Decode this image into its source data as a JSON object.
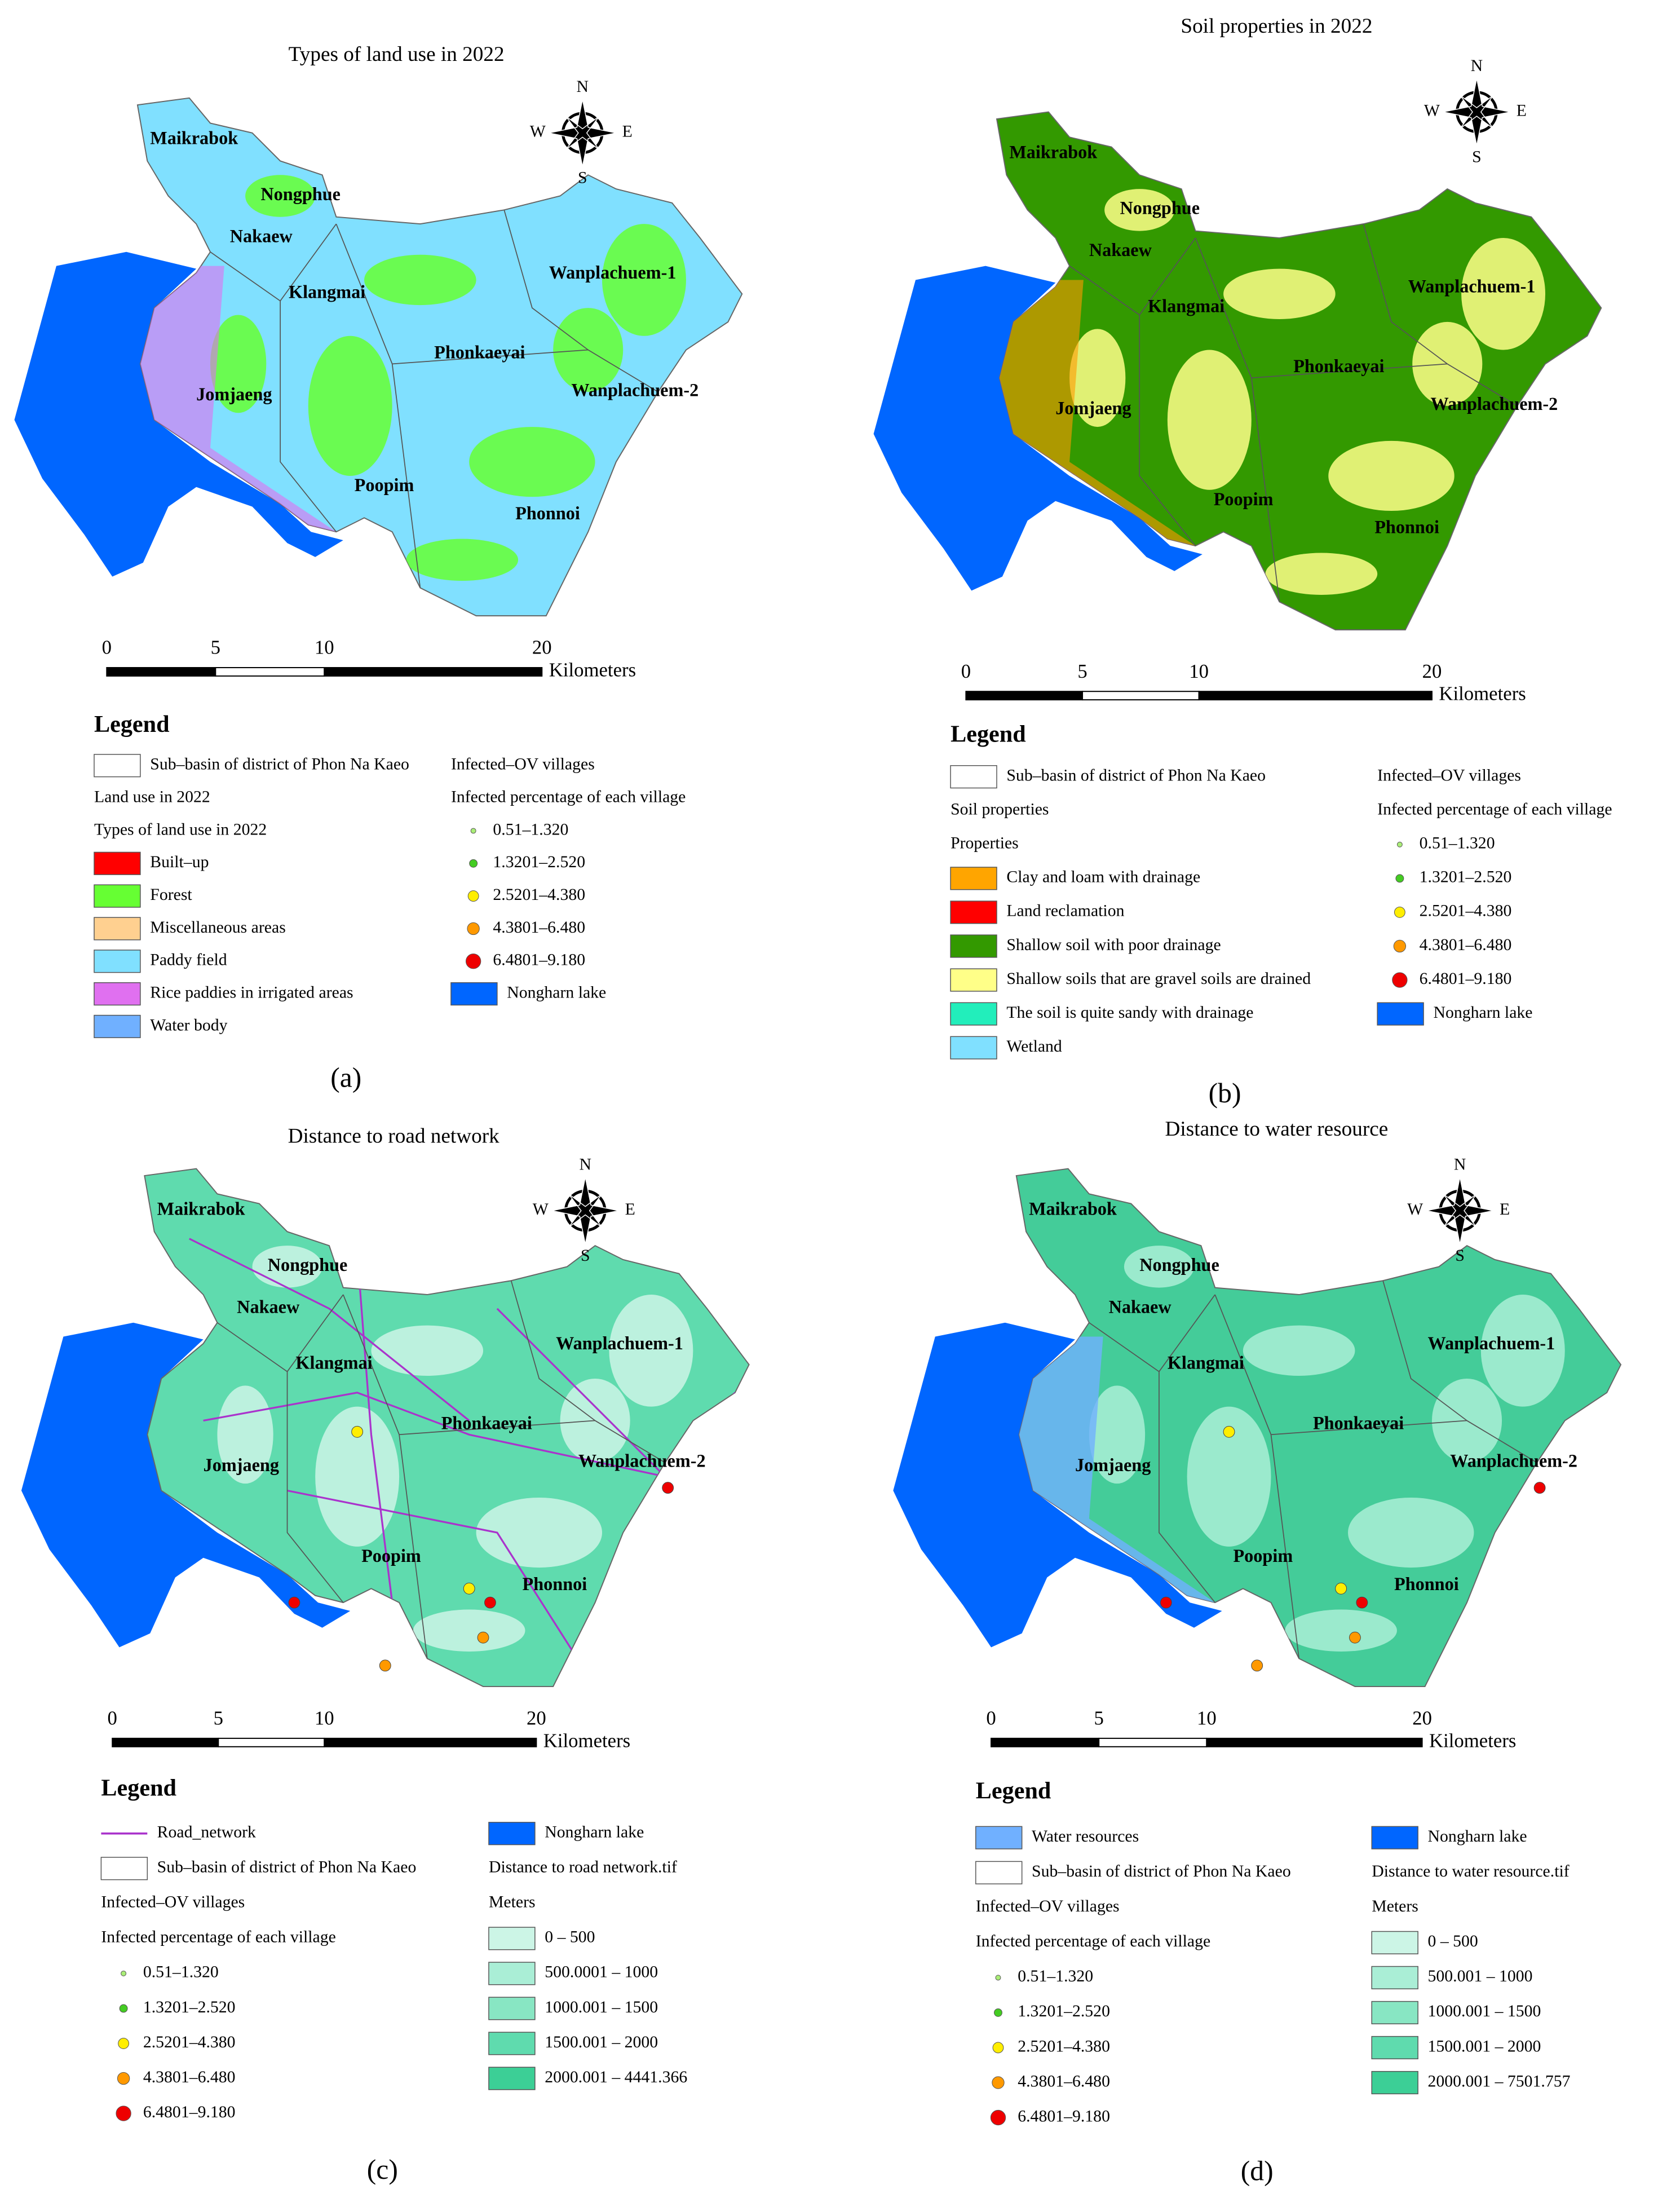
{
  "panels": [
    {
      "title": "Types of land use in 2022",
      "base": "#80e0ff",
      "blob": "#66ff33",
      "accent": "#e070f0",
      "compass": {
        "n": "N",
        "e": "E",
        "s": "S",
        "w": "W"
      },
      "places": [
        "Maikrabok",
        "Nongphue",
        "Nakaew",
        "Klangmai",
        "Wanplachuem-1",
        "Phonkaeyai",
        "Wanplachuem-2",
        "Jomjaeng",
        "Poopim",
        "Phonnoi"
      ],
      "scale": {
        "ticks": [
          "0",
          "5",
          "10",
          "20"
        ],
        "unit": "Kilometers"
      },
      "legend": {
        "heading": "Legend",
        "left": [
          {
            "label": "Sub–basin of district of Phon Na Kaeo",
            "symbol": "box",
            "color": "#ffffff"
          },
          {
            "label": "Land use in 2022"
          },
          {
            "label": "Types of land use in 2022"
          },
          {
            "label": "Built–up",
            "symbol": "box",
            "color": "#ff0000"
          },
          {
            "label": "Forest",
            "symbol": "box",
            "color": "#66ff33"
          },
          {
            "label": "Miscellaneous areas",
            "symbol": "box",
            "color": "#ffd090"
          },
          {
            "label": "Paddy field",
            "symbol": "box",
            "color": "#80e0ff"
          },
          {
            "label": "Rice paddies in irrigated areas",
            "symbol": "box",
            "color": "#e070f0"
          },
          {
            "label": "Water body",
            "symbol": "box",
            "color": "#70b0ff"
          }
        ],
        "right": [
          {
            "label": "Infected–OV villages"
          },
          {
            "label": "Infected percentage of each village"
          },
          {
            "label": "0.51–1.320",
            "symbol": "dot",
            "color": "#aaee77"
          },
          {
            "label": "1.3201–2.520",
            "symbol": "dot",
            "color": "#44cc22"
          },
          {
            "label": "2.5201–4.380",
            "symbol": "dot",
            "color": "#ffee00"
          },
          {
            "label": "4.3801–6.480",
            "symbol": "dot",
            "color": "#ff9900"
          },
          {
            "label": "6.4801–9.180",
            "symbol": "dot",
            "color": "#ee0000"
          },
          {
            "label": "Nongharn lake",
            "symbol": "box",
            "color": "#0066ff"
          }
        ]
      },
      "caption": "(a)"
    },
    {
      "title": "Soil properties in 2022",
      "base": "#339900",
      "blob": "#ffff88",
      "accent": "#ff9900",
      "compass": {
        "n": "N",
        "e": "E",
        "s": "S",
        "w": "W"
      },
      "places": [
        "Maikrabok",
        "Nongphue",
        "Nakaew",
        "Klangmai",
        "Wanplachuem-1",
        "Phonkaeyai",
        "Wanplachuem-2",
        "Jomjaeng",
        "Poopim",
        "Phonnoi"
      ],
      "scale": {
        "ticks": [
          "0",
          "5",
          "10",
          "20"
        ],
        "unit": "Kilometers"
      },
      "legend": {
        "heading": "Legend",
        "left": [
          {
            "label": "Sub–basin of district of Phon Na Kaeo",
            "symbol": "box",
            "color": "#ffffff"
          },
          {
            "label": "Soil properties"
          },
          {
            "label": "Properties"
          },
          {
            "label": "Clay and loam with drainage",
            "symbol": "box",
            "color": "#ffa500"
          },
          {
            "label": "Land reclamation",
            "symbol": "box",
            "color": "#ff0000"
          },
          {
            "label": "Shallow soil with poor drainage",
            "symbol": "box",
            "color": "#339900"
          },
          {
            "label": "Shallow soils that are gravel soils are drained",
            "symbol": "box",
            "color": "#ffff88"
          },
          {
            "label": "The soil is quite sandy with drainage",
            "symbol": "box",
            "color": "#22eebb"
          },
          {
            "label": "Wetland",
            "symbol": "box",
            "color": "#80e0ff"
          }
        ],
        "right": [
          {
            "label": "Infected–OV villages"
          },
          {
            "label": "Infected percentage of each village"
          },
          {
            "label": "0.51–1.320",
            "symbol": "dot",
            "color": "#aaee77"
          },
          {
            "label": "1.3201–2.520",
            "symbol": "dot",
            "color": "#44cc22"
          },
          {
            "label": "2.5201–4.380",
            "symbol": "dot",
            "color": "#ffee00"
          },
          {
            "label": "4.3801–6.480",
            "symbol": "dot",
            "color": "#ff9900"
          },
          {
            "label": "6.4801–9.180",
            "symbol": "dot",
            "color": "#ee0000"
          },
          {
            "label": "Nongharn lake",
            "symbol": "box",
            "color": "#0066ff"
          }
        ]
      },
      "caption": "(b)"
    },
    {
      "title": "Distance to road network",
      "base": "#5fdbae",
      "blob": "#ccf5e6",
      "accent": "#aa33cc",
      "compass": {
        "n": "N",
        "e": "E",
        "s": "S",
        "w": "W"
      },
      "places": [
        "Maikrabok",
        "Nongphue",
        "Nakaew",
        "Klangmai",
        "Wanplachuem-1",
        "Phonkaeyai",
        "Wanplachuem-2",
        "Jomjaeng",
        "Poopim",
        "Phonnoi"
      ],
      "scale": {
        "ticks": [
          "0",
          "5",
          "10",
          "20"
        ],
        "unit": "Kilometers"
      },
      "legend": {
        "heading": "Legend",
        "left": [
          {
            "label": "Road_network",
            "symbol": "line",
            "color": "#aa33cc"
          },
          {
            "label": "Sub–basin of district of Phon Na Kaeo",
            "symbol": "box",
            "color": "#ffffff"
          },
          {
            "label": "Infected–OV villages"
          },
          {
            "label": "Infected percentage of each village"
          },
          {
            "label": "0.51–1.320",
            "symbol": "dot",
            "color": "#aaee77"
          },
          {
            "label": "1.3201–2.520",
            "symbol": "dot",
            "color": "#44cc22"
          },
          {
            "label": "2.5201–4.380",
            "symbol": "dot",
            "color": "#ffee00"
          },
          {
            "label": "4.3801–6.480",
            "symbol": "dot",
            "color": "#ff9900"
          },
          {
            "label": "6.4801–9.180",
            "symbol": "dot",
            "color": "#ee0000"
          }
        ],
        "right": [
          {
            "label": "Nongharn lake",
            "symbol": "box",
            "color": "#0066ff"
          },
          {
            "label": "Distance to road network.tif"
          },
          {
            "label": "Meters"
          },
          {
            "label": "0 – 500",
            "symbol": "box",
            "color": "#ccf5e6"
          },
          {
            "label": "500.0001 – 1000",
            "symbol": "box",
            "color": "#aaeed6"
          },
          {
            "label": "1000.001 – 1500",
            "symbol": "box",
            "color": "#88e6c3"
          },
          {
            "label": "1500.001 – 2000",
            "symbol": "box",
            "color": "#5fdbae"
          },
          {
            "label": "2000.001 – 4441.366",
            "symbol": "box",
            "color": "#3ccf96"
          }
        ]
      },
      "caption": "(c)"
    },
    {
      "title": "Distance to water resource",
      "base": "#44cc99",
      "blob": "#aaeed6",
      "accent": "#70b0ff",
      "compass": {
        "n": "N",
        "e": "E",
        "s": "S",
        "w": "W"
      },
      "places": [
        "Maikrabok",
        "Nongphue",
        "Nakaew",
        "Klangmai",
        "Wanplachuem-1",
        "Phonkaeyai",
        "Wanplachuem-2",
        "Jomjaeng",
        "Poopim",
        "Phonnoi"
      ],
      "scale": {
        "ticks": [
          "0",
          "5",
          "10",
          "20"
        ],
        "unit": "Kilometers"
      },
      "legend": {
        "heading": "Legend",
        "left": [
          {
            "label": "Water resources",
            "symbol": "box",
            "color": "#70b0ff"
          },
          {
            "label": "Sub–basin of district of Phon Na Kaeo",
            "symbol": "box",
            "color": "#ffffff"
          },
          {
            "label": "Infected–OV villages"
          },
          {
            "label": "Infected percentage of each village"
          },
          {
            "label": "0.51–1.320",
            "symbol": "dot",
            "color": "#aaee77"
          },
          {
            "label": "1.3201–2.520",
            "symbol": "dot",
            "color": "#44cc22"
          },
          {
            "label": "2.5201–4.380",
            "symbol": "dot",
            "color": "#ffee00"
          },
          {
            "label": "4.3801–6.480",
            "symbol": "dot",
            "color": "#ff9900"
          },
          {
            "label": "6.4801–9.180",
            "symbol": "dot",
            "color": "#ee0000"
          }
        ],
        "right": [
          {
            "label": "Nongharn lake",
            "symbol": "box",
            "color": "#0066ff"
          },
          {
            "label": "Distance to water resource.tif"
          },
          {
            "label": "Meters"
          },
          {
            "label": "0  –  500",
            "symbol": "box",
            "color": "#ccf5e6"
          },
          {
            "label": "500.001  –  1000",
            "symbol": "box",
            "color": "#aaeed6"
          },
          {
            "label": "1000.001  –  1500",
            "symbol": "box",
            "color": "#88e6c3"
          },
          {
            "label": "1500.001  –  2000",
            "symbol": "box",
            "color": "#5fdbae"
          },
          {
            "label": "2000.001  –  7501.757",
            "symbol": "box",
            "color": "#3ccf96"
          }
        ]
      },
      "caption": "(d)"
    }
  ]
}
